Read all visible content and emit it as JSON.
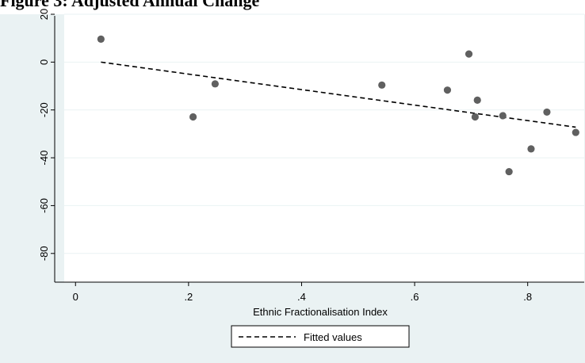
{
  "figure": {
    "cropped_title": "Figure 3: Adjusted Annual Change"
  },
  "chart_data": {
    "type": "scatter",
    "title": "",
    "xlabel": "Ethnic Fractionalisation Index",
    "ylabel": "",
    "xlim": [
      -0.02,
      0.9
    ],
    "ylim": [
      -92,
      20
    ],
    "xticks": [
      0,
      0.2,
      0.4,
      0.6,
      0.8
    ],
    "xtick_labels": [
      "0",
      ".2",
      ".4",
      ".6",
      ".8"
    ],
    "yticks": [
      20,
      0,
      -20,
      -40,
      -60,
      -80
    ],
    "ytick_labels": [
      "20",
      "0",
      "-20",
      "-40",
      "-60",
      "-80"
    ],
    "grid": true,
    "legend_position": "bottom-center",
    "legend_items": [
      "Fitted values"
    ],
    "points": [
      {
        "x": 0.045,
        "y": 9.6
      },
      {
        "x": 0.208,
        "y": -22.9
      },
      {
        "x": 0.247,
        "y": -9.1
      },
      {
        "x": 0.542,
        "y": -9.6
      },
      {
        "x": 0.658,
        "y": -11.7
      },
      {
        "x": 0.696,
        "y": 3.4
      },
      {
        "x": 0.707,
        "y": -22.9
      },
      {
        "x": 0.711,
        "y": -15.9
      },
      {
        "x": 0.756,
        "y": -22.4
      },
      {
        "x": 0.767,
        "y": -45.8
      },
      {
        "x": 0.806,
        "y": -36.3
      },
      {
        "x": 0.834,
        "y": -20.9
      },
      {
        "x": 0.885,
        "y": -29.4
      }
    ],
    "fitted_line": [
      {
        "x": 0.045,
        "y": 0.0
      },
      {
        "x": 0.885,
        "y": -27.2
      }
    ],
    "colors": {
      "points": "#606060",
      "plot_background": "#ffffff",
      "outer_background": "#eaf2f3",
      "gridlines": "#eaf2f3",
      "fit_line": "#000000"
    }
  }
}
